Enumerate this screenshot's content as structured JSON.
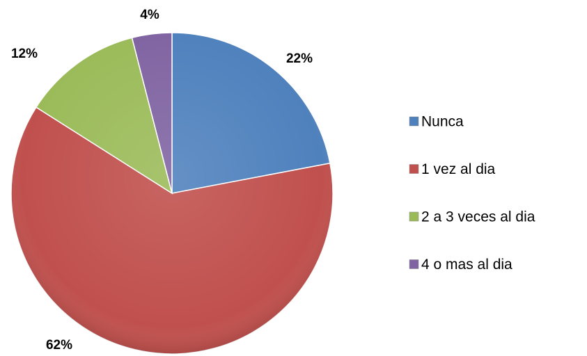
{
  "chart_data": {
    "type": "pie",
    "categories": [
      "Nunca",
      "1 vez al dia",
      "2 a 3 veces al dia",
      "4 o mas al dia"
    ],
    "values": [
      22,
      62,
      12,
      4
    ],
    "value_labels": [
      "22%",
      "62%",
      "12%",
      "4%"
    ],
    "colors": [
      "#4f81bd",
      "#c0504d",
      "#9bbb59",
      "#8064a2"
    ],
    "legend": "right"
  }
}
